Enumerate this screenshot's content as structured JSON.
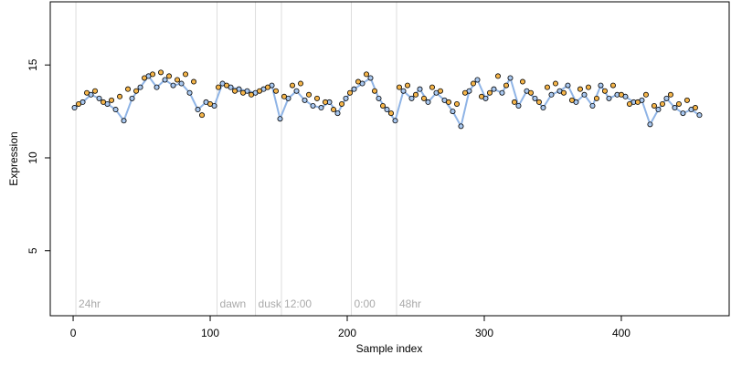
{
  "chart_data": {
    "type": "scatter",
    "x_label": "Sample index",
    "y_label": "Expression",
    "xlim": [
      -16.7,
      478.7
    ],
    "ylim": [
      1.5,
      18.4
    ],
    "xticks": [
      0,
      100,
      200,
      300,
      400
    ],
    "yticks": [
      5,
      10,
      15
    ],
    "annotations": [
      {
        "x": 2,
        "label": "24hr"
      },
      {
        "x": 105,
        "label": "dawn"
      },
      {
        "x": 133,
        "label": "dusk"
      },
      {
        "x": 152,
        "label": "12:00"
      },
      {
        "x": 203,
        "label": "0:00"
      },
      {
        "x": 236,
        "label": "48hr"
      }
    ],
    "annotation_color": "#dddddd",
    "series": [
      {
        "color": "#a9c8f0",
        "line": true,
        "line_color": "#8fb4e6",
        "x": [
          1,
          7,
          13,
          19,
          25,
          31,
          37,
          43,
          49,
          55,
          61,
          67,
          73,
          79,
          85,
          91,
          97,
          103,
          109,
          115,
          121,
          127,
          133,
          139,
          145,
          151,
          157,
          163,
          169,
          175,
          181,
          187,
          193,
          199,
          205,
          211,
          217,
          223,
          229,
          235,
          241,
          247,
          253,
          259,
          265,
          271,
          277,
          283,
          289,
          295,
          301,
          307,
          313,
          319,
          325,
          331,
          337,
          343,
          349,
          355,
          361,
          367,
          373,
          379,
          385,
          391,
          397,
          403,
          409,
          415,
          421,
          427,
          433,
          439,
          445,
          451,
          457
        ],
        "values": [
          12.7,
          13.0,
          13.4,
          13.2,
          12.9,
          12.6,
          12.0,
          13.2,
          13.8,
          14.4,
          13.8,
          14.2,
          13.9,
          14.0,
          13.5,
          12.6,
          13.0,
          12.8,
          14.0,
          13.8,
          13.7,
          13.6,
          13.5,
          13.7,
          13.9,
          12.1,
          13.2,
          13.6,
          13.1,
          12.8,
          12.7,
          13.0,
          12.4,
          13.2,
          13.7,
          14.0,
          14.3,
          13.2,
          12.6,
          12.0,
          13.6,
          13.2,
          13.7,
          13.0,
          13.5,
          13.1,
          12.5,
          11.7,
          13.6,
          14.2,
          13.2,
          13.7,
          13.5,
          14.3,
          12.8,
          13.6,
          13.2,
          12.7,
          13.4,
          13.6,
          13.9,
          13.0,
          13.4,
          12.8,
          13.9,
          13.2,
          13.4,
          13.3,
          13.0,
          13.1,
          11.8,
          12.6,
          13.2,
          12.7,
          12.4,
          12.6,
          12.3
        ]
      },
      {
        "color": "#f5b54a",
        "line": false,
        "x": [
          4,
          10,
          16,
          22,
          28,
          34,
          40,
          46,
          52,
          58,
          64,
          70,
          76,
          82,
          88,
          94,
          100,
          106,
          112,
          118,
          124,
          130,
          136,
          142,
          148,
          154,
          160,
          166,
          172,
          178,
          184,
          190,
          196,
          202,
          208,
          214,
          220,
          226,
          232,
          238,
          244,
          250,
          256,
          262,
          268,
          274,
          280,
          286,
          292,
          298,
          304,
          310,
          316,
          322,
          328,
          334,
          340,
          346,
          352,
          358,
          364,
          370,
          376,
          382,
          388,
          394,
          400,
          406,
          412,
          418,
          424,
          430,
          436,
          442,
          448,
          454
        ],
        "values": [
          12.9,
          13.5,
          13.6,
          13.0,
          13.1,
          13.3,
          13.7,
          13.6,
          14.3,
          14.5,
          14.6,
          14.4,
          14.2,
          14.5,
          14.1,
          12.3,
          12.9,
          13.8,
          13.9,
          13.6,
          13.5,
          13.4,
          13.6,
          13.8,
          13.6,
          13.3,
          13.9,
          14.0,
          13.4,
          13.2,
          13.0,
          12.6,
          12.9,
          13.5,
          14.1,
          14.5,
          13.6,
          12.8,
          12.4,
          13.8,
          13.9,
          13.4,
          13.2,
          13.8,
          13.6,
          13.0,
          12.9,
          13.5,
          14.0,
          13.3,
          13.5,
          14.4,
          13.9,
          13.0,
          14.1,
          13.5,
          13.0,
          13.8,
          14.0,
          13.5,
          13.1,
          13.7,
          13.8,
          13.2,
          13.6,
          13.9,
          13.4,
          12.9,
          13.0,
          13.4,
          12.8,
          12.9,
          13.4,
          12.9,
          13.1,
          12.7
        ]
      }
    ]
  }
}
